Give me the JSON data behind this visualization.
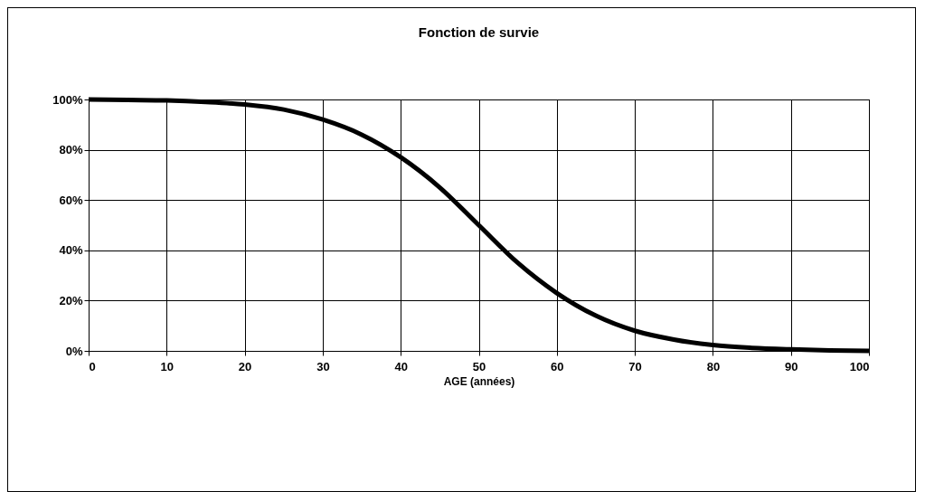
{
  "chart_data": {
    "type": "line",
    "title": "Fonction de survie",
    "xlabel": "AGE (années)",
    "x": [
      0,
      5,
      10,
      15,
      20,
      25,
      30,
      35,
      40,
      45,
      50,
      55,
      60,
      65,
      70,
      75,
      80,
      85,
      90,
      95,
      100
    ],
    "series": [
      {
        "color": "#000000",
        "values": [
          100,
          99.8,
          99.6,
          99,
          98,
          96,
          92,
          86,
          77,
          65,
          50,
          35,
          23,
          14,
          8,
          4.5,
          2.3,
          1.2,
          0.6,
          0.2,
          0
        ]
      }
    ],
    "xlim": [
      0,
      100
    ],
    "xticks": [
      0,
      10,
      20,
      30,
      40,
      50,
      60,
      70,
      80,
      90,
      100
    ],
    "ylim": [
      0,
      100
    ],
    "yticks": [
      {
        "value": 0,
        "label": "0%"
      },
      {
        "value": 20,
        "label": "20%"
      },
      {
        "value": 40,
        "label": "40%"
      },
      {
        "value": 60,
        "label": "60%"
      },
      {
        "value": 80,
        "label": "80%"
      },
      {
        "value": 100,
        "label": "100%"
      }
    ],
    "grid": true,
    "legend": false,
    "marker": "none",
    "line_style": "solid"
  }
}
